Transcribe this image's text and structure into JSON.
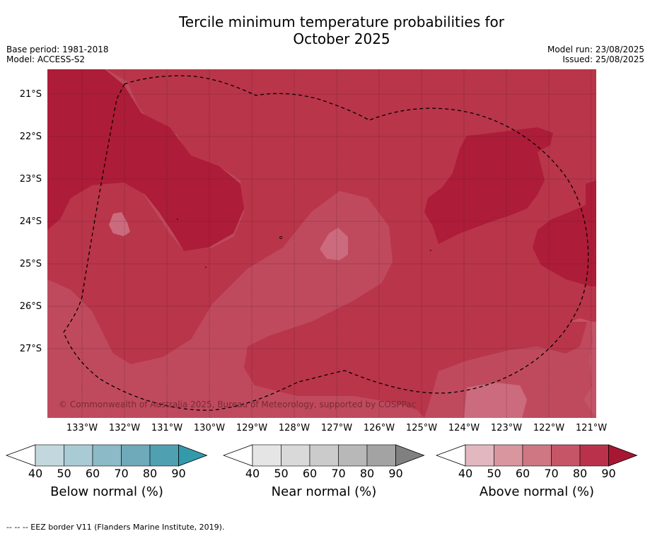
{
  "header": {
    "title_line1": "Tercile minimum temperature probabilities for",
    "title_line2": "October 2025",
    "base_period": "Base period: 1981-2018",
    "model": "Model: ACCESS-S2",
    "model_run": "Model run: 23/08/2025",
    "issued": "Issued: 25/08/2025"
  },
  "map": {
    "lat_labels": [
      "21°S",
      "22°S",
      "23°S",
      "24°S",
      "25°S",
      "26°S",
      "27°S"
    ],
    "lon_labels": [
      "133°W",
      "132°W",
      "131°W",
      "130°W",
      "129°W",
      "128°W",
      "127°W",
      "126°W",
      "125°W",
      "124°W",
      "123°W",
      "122°W",
      "121°W"
    ],
    "copyright": "© Commonwealth of Australia 2025, Bureau of Meteorology, supported by COSPPac",
    "colors": {
      "above_60_70": "#cc6b7e",
      "above_70_80": "#bf4a5e",
      "above_80_90": "#b93549",
      "above_90": "#ad1c38"
    }
  },
  "colorbars": [
    {
      "title": "Below normal (%)",
      "ticks": [
        "40",
        "50",
        "60",
        "70",
        "80",
        "90"
      ],
      "colors": [
        "#c3d8de",
        "#a9cbd4",
        "#8cbac7",
        "#6eaab9",
        "#4fa0b1",
        "#3399ab"
      ],
      "under": "#ffffff"
    },
    {
      "title": "Near normal (%)",
      "ticks": [
        "40",
        "50",
        "60",
        "70",
        "80",
        "90"
      ],
      "colors": [
        "#e5e5e5",
        "#d9d9d9",
        "#cbcbcb",
        "#b8b8b8",
        "#a3a3a3",
        "#808080"
      ],
      "under": "#ffffff"
    },
    {
      "title": "Above normal (%)",
      "ticks": [
        "40",
        "50",
        "60",
        "70",
        "80",
        "90"
      ],
      "colors": [
        "#e2b7bf",
        "#d9969f",
        "#cf7783",
        "#c65568",
        "#ba314b",
        "#a81731"
      ],
      "under": "#ffffff"
    }
  ],
  "footer": "--  --  -- EEZ border V11 (Flanders Marine Institute, 2019)."
}
